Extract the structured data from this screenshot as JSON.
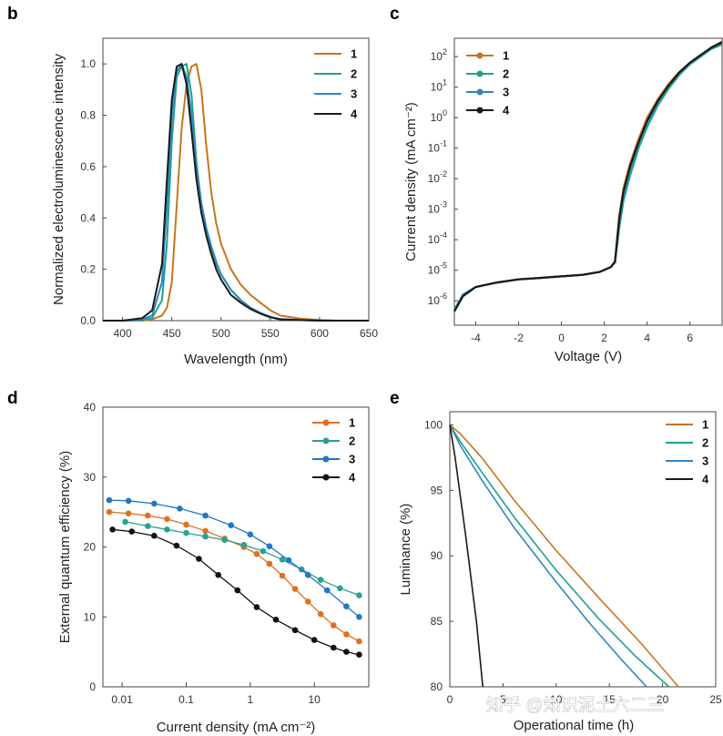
{
  "colors": {
    "1": "#c8741d",
    "2": "#1fa091",
    "3": "#2e86c1",
    "4": "#1a1a1a",
    "d1": "#e0701f",
    "d2": "#2aa190",
    "d3": "#1f78c8",
    "d4": "#111111"
  },
  "watermark": "知乎 @知识泥土六二三",
  "chart_data": [
    {
      "panel": "b",
      "type": "line",
      "title": "",
      "xlabel": "Wavelength (nm)",
      "ylabel": "Normalized electroluminescence intensity",
      "xlim": [
        380,
        650
      ],
      "ylim": [
        0,
        1.1
      ],
      "xticks": [
        400,
        450,
        500,
        550,
        600,
        650
      ],
      "yticks": [
        "0.0",
        "0.2",
        "0.4",
        "0.6",
        "0.8",
        "1.0"
      ],
      "x": [
        380,
        400,
        420,
        430,
        440,
        445,
        450,
        455,
        460,
        465,
        470,
        475,
        480,
        485,
        490,
        495,
        500,
        510,
        520,
        530,
        540,
        550,
        560,
        580,
        600,
        620,
        650
      ],
      "series": [
        {
          "name": "1",
          "values": [
            0,
            0,
            0,
            0.005,
            0.02,
            0.05,
            0.15,
            0.45,
            0.75,
            0.92,
            0.99,
            1.0,
            0.9,
            0.68,
            0.5,
            0.38,
            0.3,
            0.2,
            0.14,
            0.1,
            0.07,
            0.04,
            0.02,
            0.008,
            0.003,
            0,
            0
          ]
        },
        {
          "name": "2",
          "values": [
            0,
            0,
            0.002,
            0.01,
            0.08,
            0.3,
            0.7,
            0.95,
            0.99,
            1.0,
            0.88,
            0.62,
            0.45,
            0.35,
            0.28,
            0.22,
            0.18,
            0.12,
            0.08,
            0.05,
            0.03,
            0.015,
            0.006,
            0.002,
            0,
            0,
            0
          ]
        },
        {
          "name": "3",
          "values": [
            0,
            0,
            0.005,
            0.02,
            0.15,
            0.45,
            0.8,
            0.97,
            1.0,
            0.95,
            0.8,
            0.6,
            0.46,
            0.36,
            0.29,
            0.23,
            0.18,
            0.12,
            0.08,
            0.05,
            0.03,
            0.015,
            0.006,
            0.002,
            0,
            0,
            0
          ]
        },
        {
          "name": "4",
          "values": [
            0,
            0,
            0.01,
            0.04,
            0.22,
            0.55,
            0.86,
            0.99,
            1.0,
            0.92,
            0.74,
            0.55,
            0.42,
            0.33,
            0.26,
            0.2,
            0.16,
            0.1,
            0.07,
            0.045,
            0.027,
            0.013,
            0.005,
            0.002,
            0,
            0,
            0
          ]
        }
      ],
      "legend": "top-right"
    },
    {
      "panel": "c",
      "type": "line",
      "yscale": "log",
      "title": "",
      "xlabel": "Voltage (V)",
      "ylabel": "Current density (mA cm⁻²)",
      "xlim": [
        -5,
        7.5
      ],
      "ylim_exp": [
        -6.8,
        2.6
      ],
      "xticks": [
        "-4",
        "-2",
        "0",
        "2",
        "4",
        "6"
      ],
      "yticks": [
        "-6",
        "-5",
        "-4",
        "-3",
        "-2",
        "-1",
        "0",
        "1",
        "2"
      ],
      "x": [
        -5,
        -4.6,
        -4,
        -3,
        -2,
        -1,
        0,
        1,
        1.8,
        2.3,
        2.5,
        2.7,
        2.9,
        3.2,
        3.6,
        4,
        4.5,
        5,
        5.5,
        6,
        6.5,
        7,
        7.5
      ],
      "series": [
        {
          "name": "1",
          "log10_values": [
            -6.3,
            -5.8,
            -5.55,
            -5.4,
            -5.3,
            -5.25,
            -5.2,
            -5.15,
            -5.05,
            -4.9,
            -4.7,
            -3.2,
            -2.3,
            -1.5,
            -0.7,
            0.0,
            0.6,
            1.1,
            1.5,
            1.8,
            2.05,
            2.3,
            2.5
          ]
        },
        {
          "name": "2",
          "log10_values": [
            -6.3,
            -5.8,
            -5.55,
            -5.4,
            -5.3,
            -5.25,
            -5.2,
            -5.15,
            -5.05,
            -4.9,
            -4.75,
            -3.6,
            -2.7,
            -1.9,
            -1.0,
            -0.3,
            0.4,
            0.95,
            1.4,
            1.75,
            2.0,
            2.25,
            2.4
          ]
        },
        {
          "name": "3",
          "log10_values": [
            -6.3,
            -5.8,
            -5.55,
            -5.4,
            -5.3,
            -5.25,
            -5.2,
            -5.15,
            -5.05,
            -4.9,
            -4.72,
            -3.4,
            -2.5,
            -1.7,
            -0.85,
            -0.15,
            0.5,
            1.05,
            1.45,
            1.78,
            2.03,
            2.28,
            2.45
          ]
        },
        {
          "name": "4",
          "log10_values": [
            -6.35,
            -5.85,
            -5.55,
            -5.4,
            -5.3,
            -5.25,
            -5.2,
            -5.15,
            -5.05,
            -4.9,
            -4.72,
            -3.3,
            -2.4,
            -1.6,
            -0.8,
            -0.1,
            0.55,
            1.05,
            1.48,
            1.8,
            2.05,
            2.3,
            2.47
          ]
        }
      ],
      "legend": "top-left"
    },
    {
      "panel": "d",
      "type": "scatter",
      "xscale": "log",
      "title": "",
      "xlabel": "Current density (mA cm⁻²)",
      "ylabel": "External quantum efficiency (%)",
      "xlim_exp": [
        -2.3,
        1.85
      ],
      "ylim": [
        0,
        40
      ],
      "xticks": [
        {
          "exp": -2,
          "label": "0.01"
        },
        {
          "exp": -1,
          "label": "0.1"
        },
        {
          "exp": 0,
          "label": "1"
        },
        {
          "exp": 1,
          "label": "10"
        }
      ],
      "yticks": [
        "0",
        "10",
        "20",
        "30",
        "40"
      ],
      "series": [
        {
          "name": "1",
          "x_exp": [
            -2.2,
            -1.9,
            -1.6,
            -1.3,
            -1.0,
            -0.7,
            -0.4,
            -0.1,
            0.1,
            0.3,
            0.5,
            0.7,
            0.9,
            1.1,
            1.3,
            1.5,
            1.7
          ],
          "values": [
            25.0,
            24.8,
            24.5,
            24.0,
            23.2,
            22.3,
            21.2,
            20.0,
            19.0,
            17.6,
            15.9,
            14.0,
            12.2,
            10.4,
            8.8,
            7.5,
            6.5
          ]
        },
        {
          "name": "2",
          "x_exp": [
            -1.95,
            -1.6,
            -1.3,
            -1.0,
            -0.7,
            -0.4,
            -0.1,
            0.2,
            0.5,
            0.8,
            1.1,
            1.4,
            1.7
          ],
          "values": [
            23.6,
            23.0,
            22.5,
            22.0,
            21.5,
            21.0,
            20.3,
            19.4,
            18.2,
            16.8,
            15.3,
            14.1,
            13.1
          ]
        },
        {
          "name": "3",
          "x_exp": [
            -2.2,
            -1.9,
            -1.5,
            -1.1,
            -0.7,
            -0.3,
            0.0,
            0.3,
            0.6,
            0.9,
            1.2,
            1.5,
            1.7
          ],
          "values": [
            26.7,
            26.6,
            26.2,
            25.5,
            24.5,
            23.1,
            21.8,
            20.1,
            18.1,
            16.0,
            13.8,
            11.5,
            10.0
          ]
        },
        {
          "name": "4",
          "x_exp": [
            -2.15,
            -1.85,
            -1.5,
            -1.15,
            -0.8,
            -0.5,
            -0.2,
            0.1,
            0.4,
            0.7,
            1.0,
            1.3,
            1.5,
            1.7
          ],
          "values": [
            22.5,
            22.2,
            21.6,
            20.2,
            18.3,
            16.0,
            13.8,
            11.4,
            9.6,
            8.1,
            6.7,
            5.6,
            5.0,
            4.6
          ]
        }
      ],
      "legend": "top-right"
    },
    {
      "panel": "e",
      "type": "line",
      "title": "",
      "xlabel": "Operational time (h)",
      "ylabel": "Luminance (%)",
      "xlim": [
        0,
        25
      ],
      "ylim": [
        80,
        101
      ],
      "xticks": [
        "0",
        "5",
        "10",
        "15",
        "20",
        "25"
      ],
      "yticks": [
        "80",
        "85",
        "90",
        "95",
        "100"
      ],
      "series": [
        {
          "name": "1",
          "x": [
            0,
            1,
            3,
            6,
            10,
            14,
            18,
            21.5
          ],
          "values": [
            100,
            99.3,
            97.5,
            94.3,
            90.4,
            86.8,
            83.3,
            80
          ]
        },
        {
          "name": "2",
          "x": [
            0,
            1,
            3,
            6,
            10,
            14,
            17.5,
            20.6
          ],
          "values": [
            100,
            98.7,
            96.4,
            93.0,
            88.9,
            85.2,
            82.3,
            80
          ]
        },
        {
          "name": "3",
          "x": [
            0,
            1,
            3,
            6,
            10,
            13,
            16,
            18.5
          ],
          "values": [
            100,
            98.4,
            95.8,
            92.2,
            88.0,
            85.0,
            82.2,
            80
          ]
        },
        {
          "name": "4",
          "x": [
            0,
            0.5,
            1.5,
            2.5,
            3.1
          ],
          "values": [
            100,
            97.5,
            91.5,
            85.0,
            80
          ]
        }
      ],
      "legend": "top-right"
    }
  ]
}
